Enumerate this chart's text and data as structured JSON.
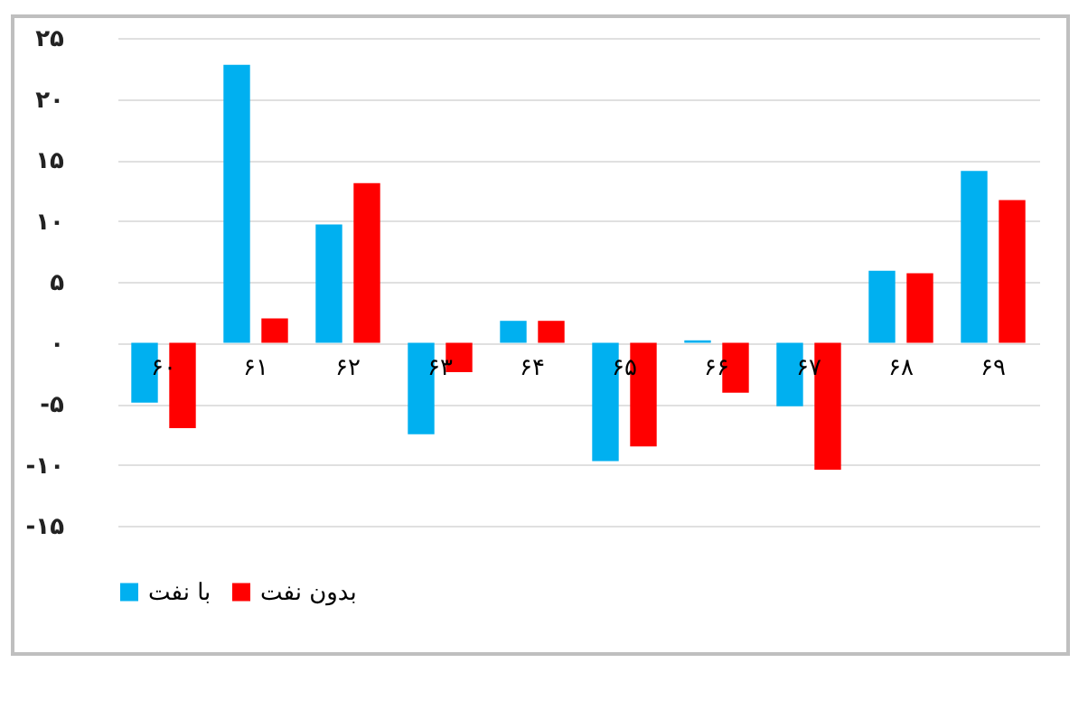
{
  "chart_data": {
    "type": "bar",
    "categories": [
      "۶۰",
      "۶۱",
      "۶۲",
      "۶۳",
      "۶۴",
      "۶۵",
      "۶۶",
      "۶۷",
      "۶۸",
      "۶۹"
    ],
    "series": [
      {
        "name": "با نفت",
        "color": "#00b0f0",
        "values": [
          -4.9,
          22.8,
          9.7,
          -7.5,
          1.8,
          -9.7,
          0.2,
          -5.2,
          5.9,
          14.1
        ]
      },
      {
        "name": "بدون نفت",
        "color": "#ff0000",
        "values": [
          -7.0,
          2.0,
          13.1,
          -2.4,
          1.8,
          -8.5,
          -4.1,
          -10.4,
          5.7,
          11.7
        ]
      }
    ],
    "ylim": [
      -15,
      25
    ],
    "yticks": [
      {
        "value": -15,
        "label": "-۱۵"
      },
      {
        "value": -10,
        "label": "-۱۰"
      },
      {
        "value": -5,
        "label": "-۵"
      },
      {
        "value": 0,
        "label": "۰"
      },
      {
        "value": 5,
        "label": "۵"
      },
      {
        "value": 10,
        "label": "۱۰"
      },
      {
        "value": 15,
        "label": "۱۵"
      },
      {
        "value": 20,
        "label": "۲۰"
      },
      {
        "value": 25,
        "label": "۲۵"
      }
    ],
    "grid": "y",
    "legend": "bottom"
  }
}
